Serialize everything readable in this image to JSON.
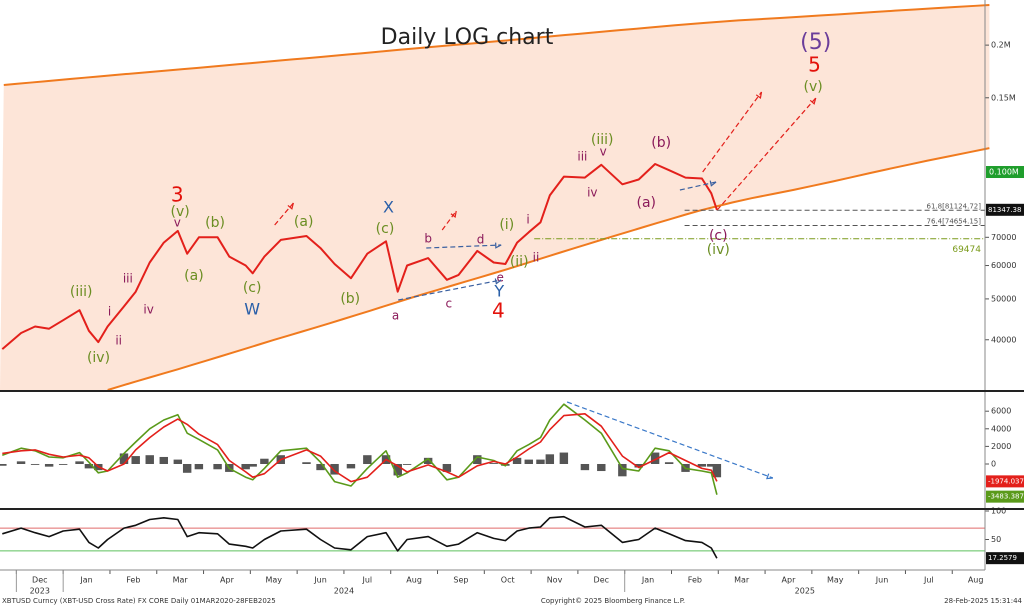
{
  "chart_data": [
    {
      "type": "line",
      "title": "Daily LOG chart",
      "log_scale": true,
      "x": [
        -0.3,
        0.1,
        0.4,
        0.7,
        1.0,
        1.35,
        1.55,
        1.75,
        1.95,
        2.3,
        2.55,
        2.85,
        3.15,
        3.45,
        3.65,
        3.9,
        4.3,
        4.55,
        4.9,
        5.05,
        5.3,
        5.65,
        6.2,
        6.5,
        6.8,
        7.15,
        7.5,
        7.9,
        8.15,
        8.35,
        8.8,
        9.2,
        9.45,
        9.85,
        10.2,
        10.45,
        10.7,
        10.95,
        11.2,
        11.4,
        11.7,
        12.15,
        12.5,
        12.95,
        13.3,
        13.65,
        13.95,
        14.3,
        14.65,
        14.85,
        14.97
      ],
      "xlim": [
        -0.35,
        20.7
      ],
      "ylim": [
        30400,
        249000
      ],
      "yticks": [
        40000,
        50000,
        60000,
        70000,
        {
          "value": 150000,
          "label": "0.15M"
        },
        {
          "value": 200000,
          "label": "0.2M"
        }
      ],
      "series": [
        {
          "color": "#e3201b",
          "tag_color": "#111111",
          "values": [
            38000,
            41500,
            43000,
            42500,
            44500,
            47000,
            42000,
            39500,
            43000,
            48000,
            52000,
            61000,
            68000,
            72500,
            64000,
            70000,
            70000,
            63000,
            60000,
            57500,
            63000,
            69000,
            70500,
            66000,
            60500,
            56000,
            64000,
            68500,
            52000,
            60000,
            62500,
            55500,
            57000,
            65000,
            61000,
            60500,
            68000,
            72000,
            76000,
            88000,
            97500,
            97000,
            104000,
            93500,
            96000,
            104500,
            101000,
            97000,
            96500,
            89000,
            81347.38
          ]
        }
      ],
      "levels": [
        {
          "value": 100000,
          "label": "0.100M",
          "color": "#1f9e2c",
          "style": "box"
        },
        {
          "value": 81124.72,
          "label": "61.8[81124.72]",
          "color": "#555555",
          "style": "dashed"
        },
        {
          "value": 74654.15,
          "label": "76.4[74654.15]",
          "color": "#555555",
          "style": "dashed"
        },
        {
          "value": 69474,
          "label": "69474",
          "color": "#7a9a1a",
          "style": "dashdot"
        }
      ],
      "annotations": [
        {
          "text": "(5)",
          "color": "#6a3d9a"
        },
        {
          "text": "5",
          "color": "#e3120b"
        },
        {
          "text": "(v)",
          "color": "#6b8e23"
        },
        {
          "text": "3",
          "color": "#e3120b"
        },
        {
          "text": "(v)",
          "color": "#6b8e23"
        },
        {
          "text": "v",
          "color": "#8b1a5a"
        },
        {
          "text": "(iii)",
          "color": "#6b8e23"
        },
        {
          "text": "iii",
          "color": "#8b1a5a"
        },
        {
          "text": "i",
          "color": "#8b1a5a"
        },
        {
          "text": "ii",
          "color": "#8b1a5a"
        },
        {
          "text": "iv",
          "color": "#8b1a5a"
        },
        {
          "text": "(iv)",
          "color": "#6b8e23"
        },
        {
          "text": "(b)",
          "color": "#6b8e23"
        },
        {
          "text": "(a)",
          "color": "#6b8e23"
        },
        {
          "text": "(c)",
          "color": "#6b8e23"
        },
        {
          "text": "W",
          "color": "#2a5fa8"
        },
        {
          "text": "(a)",
          "color": "#6b8e23"
        },
        {
          "text": "(b)",
          "color": "#6b8e23"
        },
        {
          "text": "X",
          "color": "#2a5fa8"
        },
        {
          "text": "(c)",
          "color": "#6b8e23"
        },
        {
          "text": "a",
          "color": "#8b1a5a"
        },
        {
          "text": "b",
          "color": "#8b1a5a"
        },
        {
          "text": "c",
          "color": "#8b1a5a"
        },
        {
          "text": "d",
          "color": "#8b1a5a"
        },
        {
          "text": "e",
          "color": "#8b1a5a"
        },
        {
          "text": "Y",
          "color": "#2a5fa8"
        },
        {
          "text": "4",
          "color": "#e3120b"
        },
        {
          "text": "(i)",
          "color": "#6b8e23"
        },
        {
          "text": "i",
          "color": "#8b1a5a"
        },
        {
          "text": "(ii)",
          "color": "#6b8e23"
        },
        {
          "text": "ii",
          "color": "#8b1a5a"
        },
        {
          "text": "(iii)",
          "color": "#6b8e23"
        },
        {
          "text": "iii",
          "color": "#8b1a5a"
        },
        {
          "text": "v",
          "color": "#8b1a5a"
        },
        {
          "text": "iv",
          "color": "#8b1a5a"
        },
        {
          "text": "(b)",
          "color": "#8b1a5a"
        },
        {
          "text": "(a)",
          "color": "#8b1a5a"
        },
        {
          "text": "(c)",
          "color": "#8b1a5a"
        },
        {
          "text": "(iv)",
          "color": "#6b8e23"
        }
      ]
    },
    {
      "type": "line",
      "x": [
        -0.3,
        0.1,
        0.4,
        0.7,
        1.0,
        1.35,
        1.55,
        1.75,
        1.95,
        2.3,
        2.55,
        2.85,
        3.15,
        3.45,
        3.65,
        3.9,
        4.3,
        4.55,
        4.9,
        5.05,
        5.3,
        5.65,
        6.2,
        6.5,
        6.8,
        7.15,
        7.5,
        7.9,
        8.15,
        8.35,
        8.8,
        9.2,
        9.45,
        9.85,
        10.2,
        10.45,
        10.7,
        10.95,
        11.2,
        11.4,
        11.7,
        12.15,
        12.5,
        12.95,
        13.3,
        13.65,
        13.95,
        14.3,
        14.65,
        14.85,
        14.97
      ],
      "xlim": [
        -0.35,
        20.7
      ],
      "ylim": [
        -5000,
        7840
      ],
      "yticks": [
        0,
        2000,
        4000,
        6000
      ],
      "histogram": {
        "color": "#555555",
        "values": [
          -200,
          300,
          -100,
          -300,
          -100,
          300,
          -500,
          -700,
          0,
          1200,
          900,
          1000,
          800,
          500,
          -1000,
          -600,
          -600,
          -900,
          -600,
          -300,
          600,
          1000,
          200,
          -700,
          -1200,
          -500,
          1000,
          1000,
          -1300,
          -100,
          700,
          -900,
          0,
          1000,
          100,
          -200,
          700,
          500,
          500,
          1100,
          1300,
          -700,
          -800,
          -1400,
          -400,
          1300,
          200,
          -900,
          -300,
          -300,
          -1509
        ]
      },
      "series": [
        {
          "color": "#5a9a1a",
          "tag_color": "#5a9a1a",
          "values": [
            1000,
            1800,
            1500,
            800,
            700,
            1300,
            200,
            -1000,
            -800,
            1200,
            2500,
            4000,
            5000,
            5600,
            3500,
            2800,
            1600,
            -500,
            -1500,
            -1800,
            -500,
            1500,
            1800,
            200,
            -2000,
            -2500,
            -500,
            1500,
            -1500,
            -1000,
            600,
            -1800,
            -1500,
            800,
            400,
            -200,
            1500,
            2200,
            3000,
            5000,
            6800,
            5000,
            3500,
            -500,
            -800,
            1800,
            1500,
            -500,
            -800,
            -1000,
            -3483.3875
          ]
        },
        {
          "color": "#e3201b",
          "tag_color": "#e3201b",
          "values": [
            1200,
            1500,
            1600,
            1100,
            800,
            1000,
            700,
            -300,
            -800,
            0,
            1600,
            3000,
            4200,
            5100,
            4500,
            3400,
            2200,
            400,
            -900,
            -1500,
            -1100,
            500,
            1600,
            900,
            -800,
            -2000,
            -1500,
            500,
            -200,
            -900,
            -100,
            -900,
            -1500,
            -200,
            300,
            0,
            800,
            1700,
            2500,
            3900,
            5500,
            5700,
            4300,
            900,
            -400,
            500,
            1300,
            400,
            -500,
            -700,
            -1974.0371
          ]
        }
      ]
    },
    {
      "type": "line",
      "x": [
        -0.3,
        0.1,
        0.4,
        0.7,
        1.0,
        1.35,
        1.55,
        1.75,
        1.95,
        2.3,
        2.55,
        2.85,
        3.15,
        3.45,
        3.65,
        3.9,
        4.3,
        4.55,
        4.9,
        5.05,
        5.3,
        5.65,
        6.2,
        6.5,
        6.8,
        7.15,
        7.5,
        7.9,
        8.15,
        8.35,
        8.8,
        9.2,
        9.45,
        9.85,
        10.2,
        10.45,
        10.7,
        10.95,
        11.2,
        11.4,
        11.7,
        12.15,
        12.5,
        12.95,
        13.3,
        13.65,
        13.95,
        14.3,
        14.65,
        14.85,
        14.97
      ],
      "xlim": [
        -0.35,
        20.7
      ],
      "ylim": [
        0,
        100
      ],
      "yticks": [
        50,
        100
      ],
      "levels": [
        {
          "value": 70,
          "color": "#e06a6a"
        },
        {
          "value": 30,
          "color": "#5ec05e"
        }
      ],
      "series": [
        {
          "color": "#111111",
          "tag_color": "#111111",
          "values": [
            60,
            70,
            62,
            55,
            65,
            68,
            45,
            35,
            50,
            70,
            75,
            85,
            88,
            85,
            55,
            62,
            60,
            42,
            38,
            35,
            50,
            65,
            68,
            50,
            35,
            32,
            55,
            62,
            30,
            50,
            55,
            38,
            42,
            62,
            52,
            48,
            65,
            70,
            72,
            88,
            90,
            72,
            75,
            45,
            50,
            70,
            60,
            48,
            45,
            35,
            17.2579
          ]
        }
      ],
      "xticks": [
        {
          "value": 0,
          "label": "Dec"
        },
        {
          "value": 1,
          "label": "Jan"
        },
        {
          "value": 2,
          "label": "Feb"
        },
        {
          "value": 3,
          "label": "Mar"
        },
        {
          "value": 4,
          "label": "Apr"
        },
        {
          "value": 5,
          "label": "May"
        },
        {
          "value": 6,
          "label": "Jun"
        },
        {
          "value": 7,
          "label": "Jul"
        },
        {
          "value": 8,
          "label": "Aug"
        },
        {
          "value": 9,
          "label": "Sep"
        },
        {
          "value": 10,
          "label": "Oct"
        },
        {
          "value": 11,
          "label": "Nov"
        },
        {
          "value": 12,
          "label": "Dec"
        },
        {
          "value": 13,
          "label": "Jan"
        },
        {
          "value": 14,
          "label": "Feb"
        },
        {
          "value": 15,
          "label": "Mar"
        },
        {
          "value": 16,
          "label": "Apr"
        },
        {
          "value": 17,
          "label": "May"
        },
        {
          "value": 18,
          "label": "Jun"
        },
        {
          "value": 19,
          "label": "Jul"
        },
        {
          "value": 20,
          "label": "Aug"
        }
      ],
      "xyears": [
        {
          "value": 0,
          "label": "2023"
        },
        {
          "value": 1,
          "label": "2024"
        },
        {
          "value": 13,
          "label": "2025"
        }
      ]
    }
  ],
  "footer": {
    "left": "XBTUSD Curncy (XBT-USD Cross Rate) FX CORE  Daily 01MAR2020-28FEB2025",
    "center": "Copyright© 2025 Bloomberg Finance L.P.",
    "right": "28-Feb-2025 15:31:44"
  }
}
